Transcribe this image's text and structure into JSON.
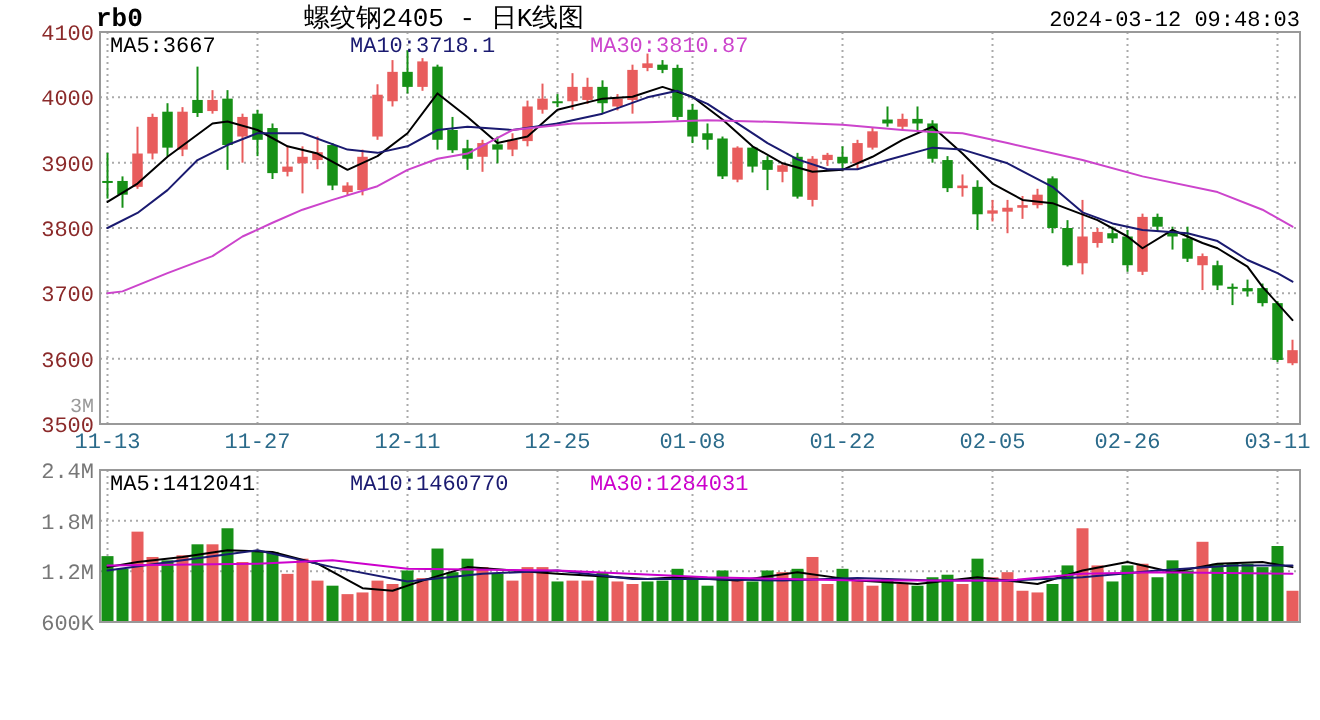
{
  "chart_data": [
    {
      "type": "candlestick",
      "title": "螺纹钢2405 - 日K线图",
      "annotations": [
        "rb0",
        "2024-03-12 09:48:03",
        "3M"
      ],
      "categories": [
        "11-13",
        null,
        null,
        null,
        null,
        null,
        null,
        null,
        null,
        null,
        "11-27",
        null,
        null,
        null,
        null,
        null,
        null,
        null,
        null,
        null,
        "12-11",
        null,
        null,
        null,
        null,
        null,
        null,
        null,
        null,
        null,
        "12-25",
        null,
        null,
        null,
        null,
        null,
        null,
        null,
        null,
        "01-08",
        null,
        null,
        null,
        null,
        null,
        null,
        null,
        null,
        null,
        "01-22",
        null,
        null,
        null,
        null,
        null,
        null,
        null,
        null,
        null,
        "02-05",
        null,
        null,
        null,
        null,
        null,
        null,
        null,
        null,
        "02-26",
        null,
        null,
        null,
        null,
        null,
        null,
        null,
        null,
        null,
        "03-11",
        null
      ],
      "ohlc": [
        [
          3872,
          3915,
          3845,
          3870
        ],
        [
          3872,
          3879,
          3831,
          3851
        ],
        [
          3863,
          3955,
          3860,
          3914
        ],
        [
          3914,
          3975,
          3905,
          3970
        ],
        [
          3978,
          3991,
          3910,
          3923
        ],
        [
          3920,
          3985,
          3910,
          3978
        ],
        [
          3996,
          4047,
          3970,
          3976
        ],
        [
          3979,
          4011,
          3975,
          3996
        ],
        [
          3998,
          4011,
          3889,
          3927
        ],
        [
          3940,
          3975,
          3900,
          3970
        ],
        [
          3975,
          3981,
          3910,
          3935
        ],
        [
          3953,
          3960,
          3875,
          3884
        ],
        [
          3886,
          3925,
          3879,
          3894
        ],
        [
          3899,
          3925,
          3853,
          3909
        ],
        [
          3904,
          3940,
          3890,
          3916
        ],
        [
          3927,
          3930,
          3858,
          3865
        ],
        [
          3855,
          3870,
          3850,
          3865
        ],
        [
          3858,
          3920,
          3850,
          3909
        ],
        [
          3940,
          4020,
          3935,
          4004
        ],
        [
          3994,
          4057,
          3986,
          4039
        ],
        [
          4039,
          4072,
          4006,
          4016
        ],
        [
          4016,
          4060,
          4010,
          4055
        ],
        [
          4047,
          4050,
          3920,
          3935
        ],
        [
          3950,
          3970,
          3915,
          3919
        ],
        [
          3922,
          3935,
          3889,
          3906
        ],
        [
          3909,
          3935,
          3886,
          3930
        ],
        [
          3928,
          3940,
          3899,
          3920
        ],
        [
          3920,
          3945,
          3910,
          3935
        ],
        [
          3933,
          3995,
          3925,
          3986
        ],
        [
          3981,
          4021,
          3975,
          3998
        ],
        [
          3994,
          4005,
          3985,
          3992
        ],
        [
          3994,
          4037,
          3981,
          4016
        ],
        [
          3996,
          4030,
          3990,
          4016
        ],
        [
          4016,
          4026,
          3976,
          3991
        ],
        [
          3986,
          4005,
          3980,
          3998
        ],
        [
          3996,
          4050,
          3975,
          4042
        ],
        [
          4045,
          4067,
          4040,
          4052
        ],
        [
          4050,
          4057,
          4037,
          4042
        ],
        [
          4045,
          4050,
          3965,
          3970
        ],
        [
          3981,
          3990,
          3930,
          3940
        ],
        [
          3945,
          3960,
          3920,
          3935
        ],
        [
          3937,
          3940,
          3875,
          3879
        ],
        [
          3874,
          3925,
          3870,
          3923
        ],
        [
          3923,
          3925,
          3885,
          3894
        ],
        [
          3904,
          3910,
          3858,
          3889
        ],
        [
          3886,
          3900,
          3870,
          3896
        ],
        [
          3909,
          3915,
          3845,
          3848
        ],
        [
          3843,
          3910,
          3833,
          3906
        ],
        [
          3904,
          3915,
          3895,
          3912
        ],
        [
          3909,
          3925,
          3889,
          3899
        ],
        [
          3899,
          3935,
          3890,
          3930
        ],
        [
          3923,
          3953,
          3920,
          3948
        ],
        [
          3966,
          3986,
          3955,
          3960
        ],
        [
          3955,
          3975,
          3950,
          3967
        ],
        [
          3967,
          3986,
          3950,
          3960
        ],
        [
          3960,
          3965,
          3900,
          3906
        ],
        [
          3904,
          3910,
          3855,
          3861
        ],
        [
          3861,
          3882,
          3848,
          3865
        ],
        [
          3863,
          3873,
          3797,
          3821
        ],
        [
          3822,
          3843,
          3810,
          3827
        ],
        [
          3825,
          3843,
          3792,
          3831
        ],
        [
          3831,
          3849,
          3814,
          3835
        ],
        [
          3835,
          3860,
          3830,
          3851
        ],
        [
          3876,
          3879,
          3792,
          3800
        ],
        [
          3800,
          3812,
          3741,
          3743
        ],
        [
          3746,
          3843,
          3729,
          3787
        ],
        [
          3777,
          3800,
          3770,
          3794
        ],
        [
          3792,
          3802,
          3777,
          3784
        ],
        [
          3787,
          3797,
          3733,
          3743
        ],
        [
          3733,
          3822,
          3728,
          3817
        ],
        [
          3817,
          3822,
          3795,
          3802
        ],
        [
          3794,
          3802,
          3767,
          3787
        ],
        [
          3784,
          3802,
          3748,
          3753
        ],
        [
          3743,
          3761,
          3705,
          3757
        ],
        [
          3743,
          3750,
          3705,
          3712
        ],
        [
          3710,
          3715,
          3682,
          3707
        ],
        [
          3708,
          3721,
          3695,
          3703
        ],
        [
          3708,
          3715,
          3680,
          3685
        ],
        [
          3685,
          3688,
          3595,
          3598
        ],
        [
          3593,
          3629,
          3590,
          3613
        ]
      ],
      "colors": [
        "#169016",
        "#169016",
        "#e85d5d",
        "#e85d5d",
        "#169016",
        "#e85d5d",
        "#169016",
        "#e85d5d",
        "#169016",
        "#e85d5d",
        "#169016",
        "#169016",
        "#e85d5d",
        "#e85d5d",
        "#e85d5d",
        "#169016",
        "#e85d5d",
        "#e85d5d",
        "#e85d5d",
        "#e85d5d",
        "#169016",
        "#e85d5d",
        "#169016",
        "#169016",
        "#169016",
        "#e85d5d",
        "#169016",
        "#e85d5d",
        "#e85d5d",
        "#e85d5d",
        "#169016",
        "#e85d5d",
        "#e85d5d",
        "#169016",
        "#e85d5d",
        "#e85d5d",
        "#e85d5d",
        "#169016",
        "#169016",
        "#169016",
        "#169016",
        "#169016",
        "#e85d5d",
        "#169016",
        "#169016",
        "#e85d5d",
        "#169016",
        "#e85d5d",
        "#e85d5d",
        "#169016",
        "#e85d5d",
        "#e85d5d",
        "#169016",
        "#e85d5d",
        "#169016",
        "#169016",
        "#169016",
        "#e85d5d",
        "#169016",
        "#e85d5d",
        "#e85d5d",
        "#e85d5d",
        "#e85d5d",
        "#169016",
        "#169016",
        "#e85d5d",
        "#e85d5d",
        "#169016",
        "#169016",
        "#e85d5d",
        "#169016",
        "#169016",
        "#169016",
        "#e85d5d",
        "#169016",
        "#169016",
        "#169016",
        "#169016",
        "#169016",
        "#e85d5d"
      ],
      "ylim": [
        3500,
        4100
      ],
      "yticks": [
        3500,
        3600,
        3700,
        3800,
        3900,
        4000,
        4100
      ],
      "grid": true,
      "legend": "top left",
      "series": [
        {
          "name": "MA5:3667",
          "type": "line",
          "color": "#000000",
          "values": [
            3840,
            null,
            3868,
            null,
            3909,
            null,
            null,
            3960,
            3963,
            null,
            3950,
            null,
            3925,
            null,
            3914,
            null,
            3889,
            null,
            3910,
            null,
            3945,
            null,
            4006,
            null,
            3970,
            null,
            3930,
            null,
            3940,
            null,
            3981,
            null,
            null,
            3998,
            null,
            4001,
            null,
            4016,
            null,
            4001,
            null,
            3966,
            null,
            3925,
            null,
            3899,
            null,
            3886,
            null,
            3889,
            null,
            3909,
            null,
            3935,
            null,
            3955,
            null,
            3914,
            null,
            3868,
            null,
            3843,
            null,
            3838,
            null,
            null,
            3812,
            null,
            3787,
            3769,
            null,
            3797,
            null,
            3777,
            3769,
            null,
            3741,
            3710,
            null,
            3659
          ]
        },
        {
          "name": "MA10:3718.1",
          "type": "line",
          "color": "#1a1a70",
          "values": [
            3800,
            null,
            3823,
            null,
            3858,
            null,
            3904,
            null,
            3927,
            null,
            3945,
            null,
            null,
            3945,
            null,
            null,
            3920,
            null,
            3915,
            null,
            3925,
            null,
            3950,
            null,
            3955,
            null,
            null,
            3950,
            null,
            null,
            3960,
            null,
            null,
            3975,
            null,
            null,
            4000,
            null,
            4010,
            null,
            3990,
            null,
            3960,
            null,
            3930,
            null,
            3905,
            null,
            3890,
            null,
            3890,
            null,
            3904,
            null,
            null,
            3923,
            null,
            3920,
            null,
            null,
            3899,
            null,
            null,
            3863,
            null,
            3824,
            null,
            3807,
            null,
            3797,
            null,
            null,
            3792,
            null,
            3780,
            null,
            3751,
            null,
            3731,
            3718
          ]
        },
        {
          "name": "MA30:3810.87",
          "type": "line",
          "color": "#cc44cc",
          "values": [
            3700,
            3703,
            null,
            null,
            3731,
            null,
            null,
            3757,
            null,
            3787,
            null,
            3808,
            null,
            3828,
            null,
            3843,
            null,
            null,
            3864,
            null,
            3889,
            null,
            3906,
            null,
            3914,
            null,
            null,
            3950,
            null,
            null,
            null,
            3960,
            null,
            null,
            null,
            null,
            3962,
            null,
            null,
            null,
            3965,
            null,
            null,
            null,
            null,
            3962,
            null,
            null,
            null,
            3958,
            null,
            null,
            null,
            3950,
            null,
            3947,
            null,
            3945,
            null,
            null,
            3930,
            null,
            null,
            null,
            null,
            3904,
            null,
            null,
            null,
            3879,
            null,
            null,
            null,
            null,
            3855,
            null,
            null,
            3828,
            null,
            3802
          ]
        }
      ]
    },
    {
      "type": "bar",
      "tick_labels": "y",
      "categories": [
        null,
        null,
        null,
        null,
        null,
        null,
        null,
        null,
        null,
        null,
        null,
        null,
        null,
        null,
        null,
        null,
        null,
        null,
        null,
        null,
        null,
        null,
        null,
        null,
        null,
        null,
        null,
        null,
        null,
        null,
        null,
        null,
        null,
        null,
        null,
        null,
        null,
        null,
        null,
        null,
        null,
        null,
        null,
        null,
        null,
        null,
        null,
        null,
        null,
        null,
        null,
        null,
        null,
        null,
        null,
        null,
        null,
        null,
        null,
        null,
        null,
        null,
        null,
        null,
        null,
        null,
        null,
        null,
        null,
        null,
        null,
        null,
        null,
        null,
        null,
        null,
        null,
        null,
        null,
        null
      ],
      "values": [
        1380000,
        1230000,
        1670000,
        1370000,
        1330000,
        1390000,
        1520000,
        1520000,
        1710000,
        1310000,
        1430000,
        1430000,
        1170000,
        1350000,
        1090000,
        1030000,
        930000,
        950000,
        1090000,
        1050000,
        1210000,
        1120000,
        1470000,
        1190000,
        1350000,
        1250000,
        1170000,
        1090000,
        1250000,
        1250000,
        1080000,
        1090000,
        1090000,
        1190000,
        1080000,
        1050000,
        1080000,
        1090000,
        1230000,
        1130000,
        1030000,
        1210000,
        1090000,
        1080000,
        1210000,
        1190000,
        1230000,
        1370000,
        1050000,
        1230000,
        1090000,
        1030000,
        1110000,
        1050000,
        1030000,
        1130000,
        1160000,
        1050000,
        1350000,
        1130000,
        1190000,
        970000,
        950000,
        1050000,
        1270000,
        1710000,
        1270000,
        1080000,
        1270000,
        1290000,
        1130000,
        1330000,
        1210000,
        1550000,
        1290000,
        1290000,
        1290000,
        1250000,
        1500000,
        970000
      ],
      "colors": [
        "#169016",
        "#169016",
        "#e85d5d",
        "#e85d5d",
        "#169016",
        "#e85d5d",
        "#169016",
        "#e85d5d",
        "#169016",
        "#e85d5d",
        "#169016",
        "#169016",
        "#e85d5d",
        "#e85d5d",
        "#e85d5d",
        "#169016",
        "#e85d5d",
        "#e85d5d",
        "#e85d5d",
        "#e85d5d",
        "#169016",
        "#e85d5d",
        "#169016",
        "#169016",
        "#169016",
        "#e85d5d",
        "#169016",
        "#e85d5d",
        "#e85d5d",
        "#e85d5d",
        "#169016",
        "#e85d5d",
        "#e85d5d",
        "#169016",
        "#e85d5d",
        "#e85d5d",
        "#169016",
        "#169016",
        "#169016",
        "#169016",
        "#169016",
        "#169016",
        "#e85d5d",
        "#169016",
        "#169016",
        "#e85d5d",
        "#169016",
        "#e85d5d",
        "#e85d5d",
        "#169016",
        "#e85d5d",
        "#e85d5d",
        "#169016",
        "#e85d5d",
        "#169016",
        "#169016",
        "#169016",
        "#e85d5d",
        "#169016",
        "#e85d5d",
        "#e85d5d",
        "#e85d5d",
        "#e85d5d",
        "#169016",
        "#169016",
        "#e85d5d",
        "#e85d5d",
        "#169016",
        "#169016",
        "#e85d5d",
        "#169016",
        "#169016",
        "#169016",
        "#e85d5d",
        "#169016",
        "#169016",
        "#169016",
        "#169016",
        "#169016",
        "#e85d5d"
      ],
      "ylim": [
        600000,
        2400000
      ],
      "yticks": [
        {
          "value": 600000,
          "label": "600K"
        },
        {
          "value": 1200000,
          "label": "1.2M"
        },
        {
          "value": 1800000,
          "label": "1.8M"
        },
        {
          "value": 2400000,
          "label": "2.4M"
        }
      ],
      "grid": true,
      "legend": "top left",
      "series": [
        {
          "name": "MA5:1412041",
          "type": "line",
          "color": "#000000",
          "values": [
            1250000,
            null,
            1310000,
            null,
            null,
            1370000,
            null,
            null,
            1450000,
            null,
            null,
            1430000,
            null,
            null,
            1290000,
            null,
            null,
            1000000,
            null,
            970000,
            null,
            1090000,
            null,
            null,
            1250000,
            null,
            null,
            1210000,
            null,
            null,
            1170000,
            null,
            null,
            null,
            1130000,
            null,
            1110000,
            null,
            1130000,
            null,
            null,
            null,
            1090000,
            null,
            null,
            null,
            1190000,
            null,
            null,
            null,
            1090000,
            null,
            null,
            null,
            1050000,
            null,
            null,
            null,
            1130000,
            null,
            null,
            null,
            1050000,
            null,
            null,
            1210000,
            null,
            null,
            1310000,
            null,
            null,
            1190000,
            null,
            null,
            1290000,
            null,
            null,
            1310000,
            null,
            1250000
          ]
        },
        {
          "name": "MA10:1460770",
          "type": "line",
          "color": "#1a1a70",
          "values": [
            1210000,
            null,
            null,
            null,
            null,
            1330000,
            null,
            null,
            null,
            null,
            1450000,
            null,
            null,
            null,
            null,
            1250000,
            null,
            null,
            null,
            null,
            1080000,
            null,
            null,
            null,
            null,
            1170000,
            null,
            null,
            null,
            null,
            1210000,
            null,
            null,
            null,
            null,
            1110000,
            null,
            null,
            null,
            null,
            1110000,
            null,
            null,
            null,
            null,
            1090000,
            null,
            null,
            null,
            null,
            1120000,
            null,
            null,
            null,
            null,
            1090000,
            null,
            null,
            null,
            null,
            1090000,
            null,
            null,
            null,
            null,
            1130000,
            null,
            null,
            null,
            null,
            1210000,
            null,
            null,
            null,
            null,
            1270000,
            null,
            null,
            null,
            1270000
          ]
        },
        {
          "name": "MA30:1284031",
          "type": "line",
          "color": "#cc00cc",
          "values": [
            1270000,
            null,
            null,
            null,
            null,
            null,
            null,
            null,
            null,
            null,
            1290000,
            null,
            null,
            null,
            null,
            1330000,
            null,
            null,
            null,
            null,
            1230000,
            null,
            null,
            null,
            null,
            null,
            null,
            null,
            null,
            null,
            1210000,
            null,
            null,
            null,
            null,
            null,
            null,
            null,
            null,
            null,
            1130000,
            null,
            null,
            null,
            null,
            null,
            null,
            null,
            null,
            null,
            1090000,
            null,
            null,
            null,
            null,
            null,
            null,
            null,
            null,
            null,
            1090000,
            null,
            null,
            null,
            null,
            1170000,
            null,
            null,
            null,
            null,
            1190000,
            null,
            null,
            null,
            null,
            null,
            null,
            null,
            null,
            1170000
          ]
        }
      ]
    }
  ]
}
